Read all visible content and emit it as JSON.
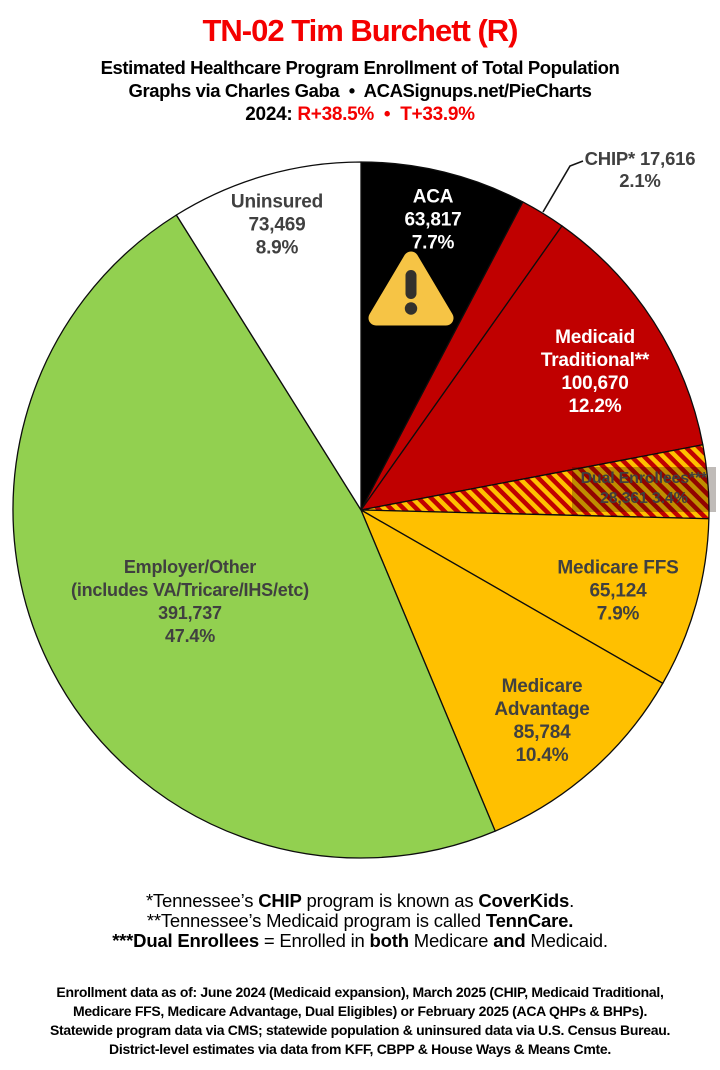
{
  "header": {
    "title": "TN-02 Tim Burchett (R)",
    "subtitle": "Estimated Healthcare Program Enrollment of Total Population",
    "credit": "Graphs via Charles Gaba  •  ACASignups.net/PieCharts",
    "year_label": "2024: ",
    "partisan_lean": "R+38.5%  •  T+33.9%",
    "accent_color": "#f40000"
  },
  "chart_data": {
    "type": "pie",
    "title": "Estimated Healthcare Program Enrollment of Total Population",
    "units": "people",
    "start_angle_deg": 0,
    "direction": "clockwise",
    "segments": [
      {
        "name": "ACA",
        "value": 63817,
        "pct": 7.7,
        "color": "#000000",
        "text_color": "#ffffff"
      },
      {
        "name": "CHIP*",
        "value": 17616,
        "pct": 2.1,
        "color": "#c00000",
        "text_color": "#404040"
      },
      {
        "name": "Medicaid Traditional**",
        "value": 100670,
        "pct": 12.2,
        "color": "#c00000",
        "text_color": "#ffffff"
      },
      {
        "name": "Dual Enrollees***",
        "value": 28361,
        "pct": 3.4,
        "pattern": "diagonal-stripes",
        "pattern_colors": [
          "#c00000",
          "#ffc000"
        ],
        "text_color": "#3f3f3f"
      },
      {
        "name": "Medicare FFS",
        "value": 65124,
        "pct": 7.9,
        "color": "#ffc000",
        "text_color": "#404040"
      },
      {
        "name": "Medicare Advantage",
        "value": 85784,
        "pct": 10.4,
        "color": "#ffc000",
        "text_color": "#404040"
      },
      {
        "name": "Employer/Other (includes VA/Tricare/IHS/etc)",
        "value": 391737,
        "pct": 47.4,
        "color": "#92d050",
        "text_color": "#404040"
      },
      {
        "name": "Uninsured",
        "value": 73469,
        "pct": 8.9,
        "color": "#ffffff",
        "text_color": "#404040"
      }
    ]
  },
  "slice_labels": {
    "uninsured": {
      "title": "Uninsured",
      "value": "73,469",
      "pct": "8.9%"
    },
    "aca": {
      "title": "ACA",
      "value": "63,817",
      "pct": "7.7%"
    },
    "chip": {
      "line1": "CHIP* 17,616",
      "line2": "2.1%"
    },
    "medicaid": {
      "line1": "Medicaid",
      "line2": "Traditional**",
      "value": "100,670",
      "pct": "12.2%"
    },
    "dual": {
      "line1": "Dual Enrollees***",
      "line2": "28,361 3.4%"
    },
    "ffs": {
      "title": "Medicare FFS",
      "value": "65,124",
      "pct": "7.9%"
    },
    "advantage": {
      "line1": "Medicare",
      "line2": "Advantage",
      "value": "85,784",
      "pct": "10.4%"
    },
    "employer": {
      "line1": "Employer/Other",
      "line2": "(includes VA/Tricare/IHS/etc)",
      "value": "391,737",
      "pct": "47.4%"
    }
  },
  "footnotes": [
    {
      "segments": [
        {
          "t": "*Tennessee’s ",
          "b": 0
        },
        {
          "t": "CHIP",
          "b": 1
        },
        {
          "t": " program is known as ",
          "b": 0
        },
        {
          "t": "CoverKids",
          "b": 1
        },
        {
          "t": ".",
          "b": 0
        }
      ]
    },
    {
      "segments": [
        {
          "t": "**Tennessee’s Medicaid program is called ",
          "b": 0
        },
        {
          "t": "TennCare.",
          "b": 1
        }
      ]
    },
    {
      "segments": [
        {
          "t": "***Dual Enrollees",
          "b": 1
        },
        {
          "t": " = Enrolled in ",
          "b": 0
        },
        {
          "t": "both",
          "b": 1
        },
        {
          "t": " Medicare ",
          "b": 0
        },
        {
          "t": "and",
          "b": 1
        },
        {
          "t": " Medicaid.",
          "b": 0
        }
      ]
    }
  ],
  "source": {
    "lines": [
      "Enrollment data as of: June 2024 (Medicaid expansion), March 2025 (CHIP, Medicaid Traditional,",
      "Medicare FFS, Medicare Advantage, Dual Eligibles) or February 2025 (ACA QHPs & BHPs).",
      "Statewide program data via CMS; statewide population & uninsured data via U.S. Census Bureau.",
      "District-level estimates via data from KFF, CBPP & House Ways & Means Cmte."
    ]
  }
}
